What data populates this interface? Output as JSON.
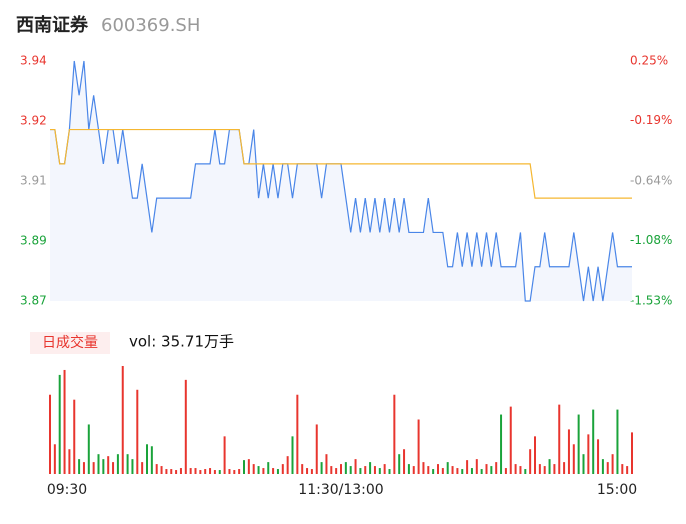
{
  "chart_data": {
    "type": "line",
    "title": "西南证券",
    "subtitle": "600369.SH",
    "xlim": [
      0,
      240
    ],
    "xticks": [
      {
        "value": 0,
        "label": "09:30"
      },
      {
        "value": 120,
        "label": "11:30/13:00"
      },
      {
        "value": 240,
        "label": "15:00"
      }
    ],
    "ylim": [
      3.87,
      3.94
    ],
    "yticks": [
      {
        "value": 3.94,
        "label": "3.94"
      },
      {
        "value": 3.9225,
        "label": "3.92"
      },
      {
        "value": 3.905,
        "label": "3.91"
      },
      {
        "value": 3.8875,
        "label": "3.89"
      },
      {
        "value": 3.87,
        "label": "3.87"
      }
    ],
    "ytick_colors": [
      "#e8352e",
      "#e8352e",
      "#999999",
      "#1aa33a",
      "#1aa33a"
    ],
    "y2lim": [
      -1.53,
      0.25
    ],
    "y2ticks": [
      {
        "value": 0.25,
        "label": "0.25%"
      },
      {
        "value": -0.19,
        "label": "-0.19%"
      },
      {
        "value": -0.64,
        "label": "-0.64%"
      },
      {
        "value": -1.08,
        "label": "-1.08%"
      },
      {
        "value": -1.53,
        "label": "-1.53%"
      }
    ],
    "x": [
      0,
      2,
      4,
      6,
      8,
      10,
      12,
      14,
      16,
      18,
      20,
      22,
      24,
      26,
      28,
      30,
      32,
      34,
      36,
      38,
      40,
      42,
      44,
      46,
      48,
      50,
      52,
      54,
      56,
      58,
      60,
      62,
      64,
      66,
      68,
      70,
      72,
      74,
      76,
      78,
      80,
      82,
      84,
      86,
      88,
      90,
      92,
      94,
      96,
      98,
      100,
      102,
      104,
      106,
      108,
      110,
      112,
      114,
      116,
      118,
      120,
      122,
      124,
      126,
      128,
      130,
      132,
      134,
      136,
      138,
      140,
      142,
      144,
      146,
      148,
      150,
      152,
      154,
      156,
      158,
      160,
      162,
      164,
      166,
      168,
      170,
      172,
      174,
      176,
      178,
      180,
      182,
      184,
      186,
      188,
      190,
      192,
      194,
      196,
      198,
      200,
      202,
      204,
      206,
      208,
      210,
      212,
      214,
      216,
      218,
      220,
      222,
      224,
      226,
      228,
      230,
      232,
      234,
      236,
      238,
      240
    ],
    "series": [
      {
        "color": "#4a86e8",
        "values": [
          3.92,
          3.92,
          3.91,
          3.91,
          3.92,
          3.94,
          3.93,
          3.94,
          3.92,
          3.93,
          3.92,
          3.91,
          3.92,
          3.92,
          3.91,
          3.92,
          3.91,
          3.9,
          3.9,
          3.91,
          3.9,
          3.89,
          3.9,
          3.9,
          3.9,
          3.9,
          3.9,
          3.9,
          3.9,
          3.9,
          3.91,
          3.91,
          3.91,
          3.91,
          3.92,
          3.91,
          3.91,
          3.92,
          3.92,
          3.92,
          3.91,
          3.91,
          3.92,
          3.9,
          3.91,
          3.9,
          3.91,
          3.9,
          3.91,
          3.91,
          3.9,
          3.91,
          3.91,
          3.91,
          3.91,
          3.91,
          3.9,
          3.91,
          3.91,
          3.91,
          3.91,
          3.9,
          3.89,
          3.9,
          3.89,
          3.9,
          3.89,
          3.9,
          3.89,
          3.9,
          3.89,
          3.9,
          3.89,
          3.9,
          3.89,
          3.89,
          3.89,
          3.89,
          3.9,
          3.89,
          3.89,
          3.89,
          3.88,
          3.88,
          3.89,
          3.88,
          3.89,
          3.88,
          3.89,
          3.88,
          3.89,
          3.88,
          3.89,
          3.88,
          3.88,
          3.88,
          3.88,
          3.89,
          3.87,
          3.87,
          3.88,
          3.88,
          3.89,
          3.88,
          3.88,
          3.88,
          3.88,
          3.88,
          3.89,
          3.88,
          3.87,
          3.88,
          3.87,
          3.88,
          3.87,
          3.88,
          3.89,
          3.88,
          3.88,
          3.88,
          3.88
        ]
      },
      {
        "color": "#f5b731",
        "values": [
          3.92,
          3.92,
          3.91,
          3.91,
          3.92,
          3.92,
          3.92,
          3.92,
          3.92,
          3.92,
          3.92,
          3.92,
          3.92,
          3.92,
          3.92,
          3.92,
          3.92,
          3.92,
          3.92,
          3.92,
          3.92,
          3.92,
          3.92,
          3.92,
          3.92,
          3.92,
          3.92,
          3.92,
          3.92,
          3.92,
          3.92,
          3.92,
          3.92,
          3.92,
          3.92,
          3.92,
          3.92,
          3.92,
          3.92,
          3.92,
          3.91,
          3.91,
          3.91,
          3.91,
          3.91,
          3.91,
          3.91,
          3.91,
          3.91,
          3.91,
          3.91,
          3.91,
          3.91,
          3.91,
          3.91,
          3.91,
          3.91,
          3.91,
          3.91,
          3.91,
          3.91,
          3.91,
          3.91,
          3.91,
          3.91,
          3.91,
          3.91,
          3.91,
          3.91,
          3.91,
          3.91,
          3.91,
          3.91,
          3.91,
          3.91,
          3.91,
          3.91,
          3.91,
          3.91,
          3.91,
          3.91,
          3.91,
          3.91,
          3.91,
          3.91,
          3.91,
          3.91,
          3.91,
          3.91,
          3.91,
          3.91,
          3.91,
          3.91,
          3.91,
          3.91,
          3.91,
          3.91,
          3.91,
          3.91,
          3.91,
          3.9,
          3.9,
          3.9,
          3.9,
          3.9,
          3.9,
          3.9,
          3.9,
          3.9,
          3.9,
          3.9,
          3.9,
          3.9,
          3.9,
          3.9,
          3.9,
          3.9,
          3.9,
          3.9,
          3.9,
          3.9
        ]
      }
    ],
    "volume_label": "日成交量",
    "volume_text": "vol: 35.71万手",
    "volume_up_color": "#e8352e",
    "volume_down_color": "#1aa33a",
    "volume_ylim": [
      0,
      110
    ],
    "volume": [
      80,
      30,
      100,
      105,
      25,
      75,
      15,
      12,
      50,
      12,
      20,
      15,
      18,
      12,
      20,
      109,
      20,
      15,
      85,
      12,
      30,
      28,
      10,
      8,
      5,
      5,
      4,
      6,
      95,
      6,
      6,
      4,
      5,
      6,
      4,
      4,
      38,
      5,
      4,
      5,
      14,
      15,
      10,
      8,
      6,
      12,
      6,
      5,
      10,
      18,
      38,
      80,
      10,
      6,
      5,
      50,
      12,
      20,
      8,
      6,
      10,
      12,
      8,
      15,
      6,
      8,
      12,
      8,
      6,
      10,
      5,
      80,
      20,
      25,
      10,
      8,
      55,
      12,
      8,
      5,
      10,
      6,
      12,
      8,
      6,
      5,
      14,
      6,
      15,
      5,
      10,
      8,
      12,
      60,
      6,
      68,
      10,
      8,
      5,
      25,
      38,
      10,
      8,
      15,
      10,
      70,
      12,
      45,
      30,
      60,
      20,
      40,
      65,
      35,
      15,
      12,
      20,
      65,
      10,
      8,
      42
    ]
  }
}
